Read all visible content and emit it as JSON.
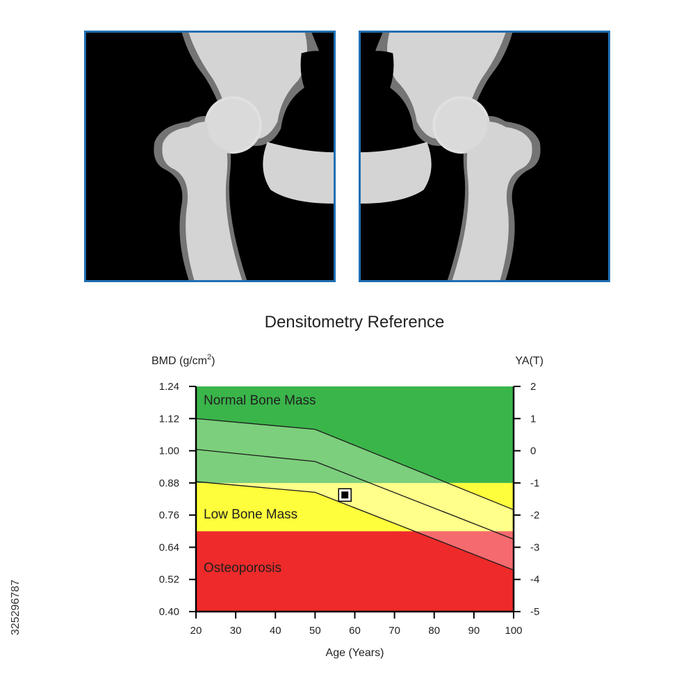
{
  "xray": {
    "left_image": "hip-bone-left-xray",
    "right_image": "hip-bone-right-xray",
    "frame_color": "#1f6fb2",
    "bone_color": "#d4d4d4"
  },
  "side_id": "325296787",
  "chart_data": {
    "type": "line",
    "title": "Densitometry Reference",
    "xlabel": "Age (Years)",
    "ylabel_left_main": "BMD (g/cm",
    "ylabel_left_sup": "2",
    "ylabel_left_end": ")",
    "ylabel_right": "YA(T)",
    "xlim": [
      20,
      100
    ],
    "ylim": [
      0.4,
      1.24
    ],
    "x_ticks": [
      "20",
      "30",
      "40",
      "50",
      "60",
      "70",
      "80",
      "90",
      "100"
    ],
    "y_ticks_left": [
      "0.40",
      "0.52",
      "0.64",
      "0.76",
      "0.88",
      "1.00",
      "1.12",
      "1.24"
    ],
    "y_ticks_left_values": [
      0.4,
      0.52,
      0.64,
      0.76,
      0.88,
      1.0,
      1.12,
      1.24
    ],
    "y_ticks_right": [
      "-5",
      "-4",
      "-3",
      "-2",
      "-1",
      "0",
      "1",
      "2"
    ],
    "zones": [
      {
        "name": "Osteoporosis",
        "from": 0.4,
        "to": 0.7,
        "color": "#ee2a2a"
      },
      {
        "name": "Low Bone Mass",
        "from": 0.7,
        "to": 0.88,
        "color": "#fefe3c"
      },
      {
        "name": "Normal Bone Mass",
        "from": 0.88,
        "to": 1.24,
        "color": "#3ab54a"
      }
    ],
    "band": {
      "upper": [
        [
          20,
          1.12
        ],
        [
          50,
          1.08
        ],
        [
          100,
          0.78
        ]
      ],
      "lower": [
        [
          20,
          0.885
        ],
        [
          50,
          0.845
        ],
        [
          100,
          0.555
        ]
      ],
      "colors": {
        "on_green": "#7ccf7c",
        "on_yellow": "#ffff8a",
        "on_red": "#f56a6e"
      }
    },
    "series": [
      {
        "values": [
          [
            20,
            1.12
          ],
          [
            50,
            1.08
          ],
          [
            100,
            0.78
          ]
        ]
      },
      {
        "values": [
          [
            20,
            1.005
          ],
          [
            50,
            0.96
          ],
          [
            100,
            0.67
          ]
        ]
      },
      {
        "values": [
          [
            20,
            0.885
          ],
          [
            50,
            0.845
          ],
          [
            100,
            0.555
          ]
        ]
      }
    ],
    "patient_point": {
      "x": 57.5,
      "y": 0.835
    }
  }
}
